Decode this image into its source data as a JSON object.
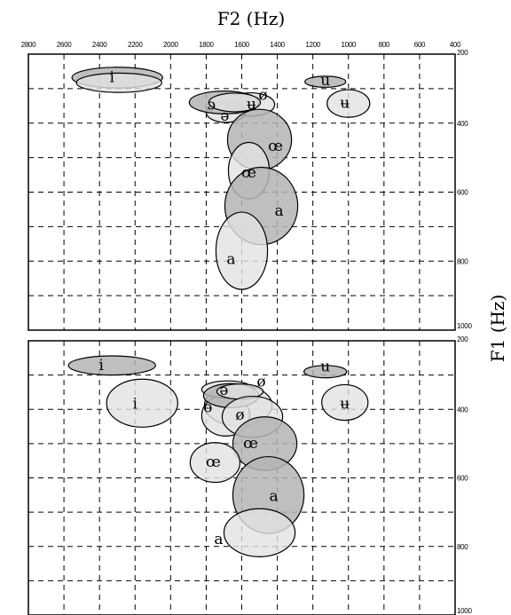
{
  "chart_data": {
    "type": "scatter",
    "x_title": "F2 (Hz)",
    "y_title": "F1 (Hz)",
    "x_ticks": [
      "2800",
      "2600",
      "2400",
      "2200",
      "2000",
      "1800",
      "1600",
      "1400",
      "1200",
      "1000",
      "800",
      "600",
      "400"
    ],
    "x_range": [
      2800,
      400
    ],
    "y_range": [
      200,
      1000
    ],
    "colors": {
      "dark": "#b4b4b4",
      "light": "#e2e2e2",
      "ink": "#000000"
    },
    "panels": [
      {
        "y_ticks": [
          "200",
          "400",
          "600",
          "800",
          "1000"
        ],
        "vowels": [
          {
            "label": "i",
            "f2": 2300,
            "f1": 268,
            "rf2": 255,
            "rf1": 30,
            "shade": "dark",
            "lf2": 2330,
            "lf1": 268
          },
          {
            "label": "",
            "f2": 2290,
            "f1": 283,
            "rf2": 240,
            "rf1": 28,
            "shade": "light",
            "lf2": 0,
            "lf1": 0
          },
          {
            "label": "ʉ",
            "f2": 1550,
            "f1": 346,
            "rf2": 135,
            "rf1": 34,
            "shade": "light",
            "lf2": 1545,
            "lf1": 346
          },
          {
            "label": "ə",
            "f2": 1690,
            "f1": 368,
            "rf2": 110,
            "rf1": 30,
            "shade": "light",
            "lf2": 1695,
            "lf1": 380
          },
          {
            "label": "ɔ",
            "f2": 1700,
            "f1": 340,
            "rf2": 195,
            "rf1": 33,
            "shade": "dark",
            "lf2": 1770,
            "lf1": 348
          },
          {
            "label": "ø",
            "f2": 1640,
            "f1": 340,
            "rf2": 145,
            "rf1": 27,
            "shade": "light",
            "lf2": 1480,
            "lf1": 320
          },
          {
            "label": "œ",
            "f2": 1500,
            "f1": 448,
            "rf2": 180,
            "rf1": 88,
            "shade": "dark",
            "lf2": 1410,
            "lf1": 468
          },
          {
            "label": "œ",
            "f2": 1560,
            "f1": 538,
            "rf2": 115,
            "rf1": 82,
            "shade": "light",
            "lf2": 1560,
            "lf1": 545
          },
          {
            "label": "a",
            "f2": 1490,
            "f1": 640,
            "rf2": 205,
            "rf1": 112,
            "shade": "dark",
            "lf2": 1390,
            "lf1": 655
          },
          {
            "label": "a",
            "f2": 1600,
            "f1": 770,
            "rf2": 145,
            "rf1": 112,
            "shade": "light",
            "lf2": 1660,
            "lf1": 795
          },
          {
            "label": "u",
            "f2": 1130,
            "f1": 280,
            "rf2": 115,
            "rf1": 16,
            "shade": "dark",
            "lf2": 1130,
            "lf1": 277
          },
          {
            "label": "ʉ",
            "f2": 1000,
            "f1": 343,
            "rf2": 120,
            "rf1": 40,
            "shade": "light",
            "lf2": 1020,
            "lf1": 343
          }
        ]
      },
      {
        "y_ticks": [
          "200",
          "400",
          "600",
          "800",
          "1000"
        ],
        "vowels": [
          {
            "label": "i",
            "f2": 2330,
            "f1": 272,
            "rf2": 245,
            "rf1": 28,
            "shade": "dark",
            "lf2": 2390,
            "lf1": 272
          },
          {
            "label": "i",
            "f2": 2160,
            "f1": 382,
            "rf2": 200,
            "rf1": 70,
            "shade": "light",
            "lf2": 2200,
            "lf1": 385
          },
          {
            "label": "",
            "f2": 1620,
            "f1": 388,
            "rf2": 190,
            "rf1": 60,
            "shade": "light",
            "lf2": 0,
            "lf1": 0
          },
          {
            "label": "ɵ",
            "f2": 1690,
            "f1": 418,
            "rf2": 135,
            "rf1": 60,
            "shade": "light",
            "lf2": 1790,
            "lf1": 395
          },
          {
            "label": "ə",
            "f2": 1680,
            "f1": 342,
            "rf2": 145,
            "rf1": 25,
            "shade": "light",
            "lf2": 1700,
            "lf1": 345
          },
          {
            "label": "",
            "f2": 1660,
            "f1": 360,
            "rf2": 155,
            "rf1": 35,
            "shade": "dark",
            "lf2": 0,
            "lf1": 0
          },
          {
            "label": "ø",
            "f2": 1610,
            "f1": 348,
            "rf2": 130,
            "rf1": 22,
            "shade": "light",
            "lf2": 1490,
            "lf1": 320
          },
          {
            "label": "ø",
            "f2": 1540,
            "f1": 422,
            "rf2": 170,
            "rf1": 60,
            "shade": "light",
            "lf2": 1610,
            "lf1": 418
          },
          {
            "label": "œ",
            "f2": 1470,
            "f1": 500,
            "rf2": 180,
            "rf1": 78,
            "shade": "dark",
            "lf2": 1550,
            "lf1": 500
          },
          {
            "label": "œ",
            "f2": 1750,
            "f1": 555,
            "rf2": 140,
            "rf1": 58,
            "shade": "light",
            "lf2": 1760,
            "lf1": 555
          },
          {
            "label": "a",
            "f2": 1450,
            "f1": 650,
            "rf2": 200,
            "rf1": 112,
            "shade": "dark",
            "lf2": 1420,
            "lf1": 655
          },
          {
            "label": "a",
            "f2": 1500,
            "f1": 760,
            "rf2": 200,
            "rf1": 70,
            "shade": "light",
            "lf2": 1730,
            "lf1": 780
          },
          {
            "label": "u",
            "f2": 1130,
            "f1": 290,
            "rf2": 120,
            "rf1": 18,
            "shade": "dark",
            "lf2": 1130,
            "lf1": 277
          },
          {
            "label": "ʉ",
            "f2": 1020,
            "f1": 380,
            "rf2": 130,
            "rf1": 52,
            "shade": "light",
            "lf2": 1020,
            "lf1": 385
          }
        ]
      }
    ]
  }
}
